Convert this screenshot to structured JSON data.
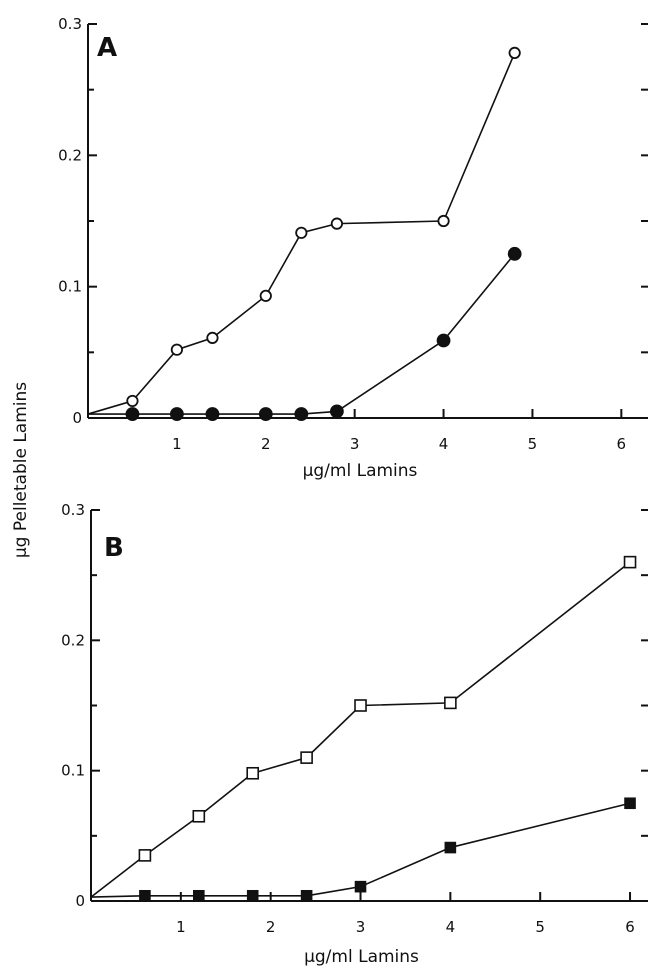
{
  "ylabel": "μg Pelletable Lamins",
  "chart_data": [
    {
      "type": "line",
      "panel_label": "A",
      "xlabel": "μg/ml Lamins",
      "xlim": [
        0,
        6.3
      ],
      "ylim": [
        0,
        0.3
      ],
      "xticks": [
        1,
        2,
        3,
        4,
        5,
        6
      ],
      "yticks": [
        0,
        0.1,
        0.2,
        0.3
      ],
      "ytick_labels": [
        "0",
        "0.1",
        "0.2",
        "0.3"
      ],
      "series": [
        {
          "marker": "open-circle",
          "x": [
            0,
            0.5,
            1.0,
            1.4,
            2.0,
            2.4,
            2.8,
            4.0,
            4.8
          ],
          "y": [
            0.003,
            0.013,
            0.052,
            0.061,
            0.093,
            0.141,
            0.148,
            0.15,
            0.278
          ]
        },
        {
          "marker": "filled-circle",
          "x": [
            0,
            0.5,
            1.0,
            1.4,
            2.0,
            2.4,
            2.8,
            4.0,
            4.8
          ],
          "y": [
            0.003,
            0.003,
            0.003,
            0.003,
            0.003,
            0.003,
            0.005,
            0.059,
            0.125
          ]
        }
      ]
    },
    {
      "type": "line",
      "panel_label": "B",
      "xlabel": "μg/ml Lamins",
      "xlim": [
        0,
        6.2
      ],
      "ylim": [
        0,
        0.3
      ],
      "xticks": [
        1,
        2,
        3,
        4,
        5,
        6
      ],
      "yticks": [
        0,
        0.1,
        0.2,
        0.3
      ],
      "ytick_labels": [
        "0",
        "0.1",
        "0.2",
        "0.3"
      ],
      "series": [
        {
          "marker": "open-square",
          "x": [
            0,
            0.6,
            1.2,
            1.8,
            2.4,
            3.0,
            4.0,
            6.0
          ],
          "y": [
            0.003,
            0.035,
            0.065,
            0.098,
            0.11,
            0.15,
            0.152,
            0.26
          ]
        },
        {
          "marker": "filled-square",
          "x": [
            0,
            0.6,
            1.2,
            1.8,
            2.4,
            3.0,
            4.0,
            6.0
          ],
          "y": [
            0.003,
            0.004,
            0.004,
            0.004,
            0.004,
            0.011,
            0.041,
            0.075
          ]
        }
      ]
    }
  ]
}
